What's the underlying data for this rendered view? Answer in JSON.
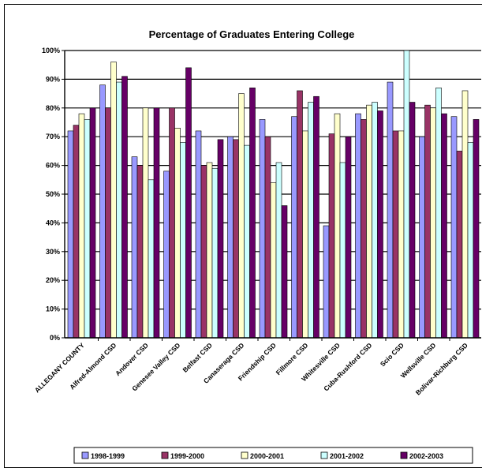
{
  "chart_data": {
    "type": "bar",
    "title": "Percentage of Graduates Entering College",
    "xlabel": "",
    "ylabel": "",
    "ylim": [
      0,
      100
    ],
    "ytick_labels": [
      "0%",
      "10%",
      "20%",
      "30%",
      "40%",
      "50%",
      "60%",
      "70%",
      "80%",
      "90%",
      "100%"
    ],
    "grid": true,
    "legend_position": "bottom",
    "categories": [
      "ALLEGANY COUNTY",
      "Alfred-Almond CSD",
      "Andover CSD",
      "Genesee Valley CSD",
      "Belfast CSD",
      "Canaseraga CSD",
      "Friendship CSD",
      "Fillmore CSD",
      "Whitesville CSD",
      "Cuba-Rushford CSD",
      "Scio CSD",
      "Wellsville CSD",
      "Bolivar-Richburg CSD"
    ],
    "series": [
      {
        "name": "1998-1999",
        "color": "#9999ff",
        "values": [
          72,
          88,
          63,
          58,
          72,
          70,
          76,
          77,
          39,
          78,
          89,
          70,
          77
        ]
      },
      {
        "name": "1999-2000",
        "color": "#993366",
        "values": [
          74,
          80,
          60,
          80,
          60,
          69,
          70,
          86,
          71,
          76,
          72,
          81,
          65
        ]
      },
      {
        "name": "2000-2001",
        "color": "#ffffcc",
        "values": [
          78,
          96,
          80,
          73,
          61,
          85,
          54,
          72,
          78,
          81,
          72,
          80,
          86
        ]
      },
      {
        "name": "2001-2002",
        "color": "#ccffff",
        "values": [
          76,
          89,
          55,
          68,
          59,
          67,
          61,
          82,
          61,
          82,
          100,
          87,
          68
        ]
      },
      {
        "name": "2002-2003",
        "color": "#660066",
        "values": [
          80,
          91,
          80,
          94,
          69,
          87,
          46,
          84,
          70,
          79,
          82,
          78,
          76
        ]
      }
    ]
  }
}
